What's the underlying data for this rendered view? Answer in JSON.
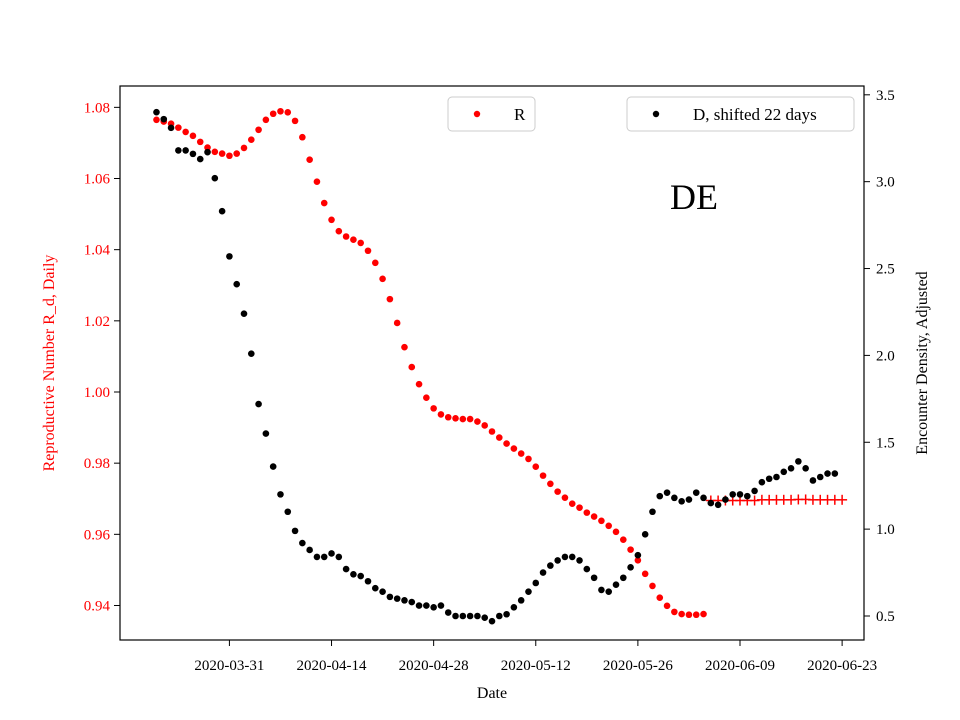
{
  "chart_data": {
    "type": "scatter",
    "annotation": "DE",
    "xlabel": "Date",
    "x_tick_labels": [
      "2020-03-31",
      "2020-04-14",
      "2020-04-28",
      "2020-05-12",
      "2020-05-26",
      "2020-06-09",
      "2020-06-23"
    ],
    "x_ticks": [
      "2020-03-31",
      "2020-04-14",
      "2020-04-28",
      "2020-05-12",
      "2020-05-26",
      "2020-06-09",
      "2020-06-23"
    ],
    "xlim": [
      "2020-03-16",
      "2020-06-26"
    ],
    "y_left": {
      "label": "Reproductive Number R_d, Daily",
      "color": "#ff0000",
      "ylim": [
        0.9303,
        1.086
      ],
      "ticks": [
        0.94,
        0.96,
        0.98,
        1.0,
        1.02,
        1.04,
        1.06,
        1.08
      ],
      "tick_labels": [
        "0.94",
        "0.96",
        "0.98",
        "1.00",
        "1.02",
        "1.04",
        "1.06",
        "1.08"
      ]
    },
    "y_right": {
      "label": "Encounter Density, Adjusted",
      "color": "#000000",
      "ylim": [
        0.3618,
        3.5507
      ],
      "ticks": [
        0.5,
        1.0,
        1.5,
        2.0,
        2.5,
        3.0,
        3.5
      ],
      "tick_labels": [
        "0.5",
        "1.0",
        "1.5",
        "2.0",
        "2.5",
        "3.0",
        "3.5"
      ]
    },
    "legend": [
      {
        "label": "R",
        "color": "#ff0000",
        "position": "top-center"
      },
      {
        "label": "D, shifted 22 days",
        "color": "#000000",
        "position": "top-right"
      }
    ],
    "series": [
      {
        "name": "R",
        "axis": "left",
        "marker": "dot",
        "color": "#ff0000",
        "points": [
          [
            "2020-03-21",
            1.0765
          ],
          [
            "2020-03-22",
            1.076
          ],
          [
            "2020-03-23",
            1.0754
          ],
          [
            "2020-03-24",
            1.0743
          ],
          [
            "2020-03-25",
            1.0731
          ],
          [
            "2020-03-26",
            1.072
          ],
          [
            "2020-03-27",
            1.0703
          ],
          [
            "2020-03-28",
            1.0687
          ],
          [
            "2020-03-29",
            1.0675
          ],
          [
            "2020-03-30",
            1.067
          ],
          [
            "2020-03-31",
            1.0664
          ],
          [
            "2020-04-01",
            1.067
          ],
          [
            "2020-04-02",
            1.0686
          ],
          [
            "2020-04-03",
            1.0709
          ],
          [
            "2020-04-04",
            1.0737
          ],
          [
            "2020-04-05",
            1.0765
          ],
          [
            "2020-04-06",
            1.0782
          ],
          [
            "2020-04-07",
            1.0789
          ],
          [
            "2020-04-08",
            1.0786
          ],
          [
            "2020-04-09",
            1.0762
          ],
          [
            "2020-04-10",
            1.0716
          ],
          [
            "2020-04-11",
            1.0653
          ],
          [
            "2020-04-12",
            1.0591
          ],
          [
            "2020-04-13",
            1.0531
          ],
          [
            "2020-04-14",
            1.0484
          ],
          [
            "2020-04-15",
            1.0452
          ],
          [
            "2020-04-16",
            1.0437
          ],
          [
            "2020-04-17",
            1.0428
          ],
          [
            "2020-04-18",
            1.0419
          ],
          [
            "2020-04-19",
            1.0397
          ],
          [
            "2020-04-20",
            1.0363
          ],
          [
            "2020-04-21",
            1.0318
          ],
          [
            "2020-04-22",
            1.0261
          ],
          [
            "2020-04-23",
            1.0194
          ],
          [
            "2020-04-24",
            1.0126
          ],
          [
            "2020-04-25",
            1.007
          ],
          [
            "2020-04-26",
            1.0022
          ],
          [
            "2020-04-27",
            0.9984
          ],
          [
            "2020-04-28",
            0.9954
          ],
          [
            "2020-04-29",
            0.9937
          ],
          [
            "2020-04-30",
            0.9929
          ],
          [
            "2020-05-01",
            0.9926
          ],
          [
            "2020-05-02",
            0.9924
          ],
          [
            "2020-05-03",
            0.9924
          ],
          [
            "2020-05-04",
            0.9917
          ],
          [
            "2020-05-05",
            0.9906
          ],
          [
            "2020-05-06",
            0.9889
          ],
          [
            "2020-05-07",
            0.9872
          ],
          [
            "2020-05-08",
            0.9855
          ],
          [
            "2020-05-09",
            0.9841
          ],
          [
            "2020-05-10",
            0.9827
          ],
          [
            "2020-05-11",
            0.9812
          ],
          [
            "2020-05-12",
            0.979
          ],
          [
            "2020-05-13",
            0.9765
          ],
          [
            "2020-05-14",
            0.9742
          ],
          [
            "2020-05-15",
            0.972
          ],
          [
            "2020-05-16",
            0.9703
          ],
          [
            "2020-05-17",
            0.9686
          ],
          [
            "2020-05-18",
            0.9675
          ],
          [
            "2020-05-19",
            0.9661
          ],
          [
            "2020-05-20",
            0.965
          ],
          [
            "2020-05-21",
            0.9638
          ],
          [
            "2020-05-22",
            0.9624
          ],
          [
            "2020-05-23",
            0.9607
          ],
          [
            "2020-05-24",
            0.9585
          ],
          [
            "2020-05-25",
            0.9557
          ],
          [
            "2020-05-26",
            0.9527
          ],
          [
            "2020-05-27",
            0.9489
          ],
          [
            "2020-05-28",
            0.9455
          ],
          [
            "2020-05-29",
            0.9422
          ],
          [
            "2020-05-30",
            0.9399
          ],
          [
            "2020-05-31",
            0.9382
          ],
          [
            "2020-06-01",
            0.9376
          ],
          [
            "2020-06-02",
            0.9374
          ],
          [
            "2020-06-03",
            0.9374
          ],
          [
            "2020-06-04",
            0.9376
          ]
        ]
      },
      {
        "name": "",
        "axis": "left",
        "marker": "plus",
        "color": "#ff0000",
        "points": [
          [
            "2020-06-05",
            0.9695
          ],
          [
            "2020-06-06",
            0.9695
          ],
          [
            "2020-06-07",
            0.9695
          ],
          [
            "2020-06-08",
            0.9695
          ],
          [
            "2020-06-09",
            0.9695
          ],
          [
            "2020-06-10",
            0.9695
          ],
          [
            "2020-06-11",
            0.9695
          ],
          [
            "2020-06-12",
            0.9697
          ],
          [
            "2020-06-13",
            0.9697
          ],
          [
            "2020-06-14",
            0.9697
          ],
          [
            "2020-06-15",
            0.9697
          ],
          [
            "2020-06-16",
            0.9697
          ],
          [
            "2020-06-17",
            0.9698
          ],
          [
            "2020-06-18",
            0.9698
          ],
          [
            "2020-06-19",
            0.9697
          ],
          [
            "2020-06-20",
            0.9697
          ],
          [
            "2020-06-21",
            0.9697
          ],
          [
            "2020-06-22",
            0.9697
          ],
          [
            "2020-06-23",
            0.9697
          ]
        ]
      },
      {
        "name": "D, shifted 22 days",
        "axis": "right",
        "marker": "dot",
        "color": "#000000",
        "points": [
          [
            "2020-03-21",
            3.4
          ],
          [
            "2020-03-22",
            3.36
          ],
          [
            "2020-03-23",
            3.31
          ],
          [
            "2020-03-24",
            3.18
          ],
          [
            "2020-03-25",
            3.18
          ],
          [
            "2020-03-26",
            3.16
          ],
          [
            "2020-03-27",
            3.13
          ],
          [
            "2020-03-28",
            3.17
          ],
          [
            "2020-03-29",
            3.02
          ],
          [
            "2020-03-30",
            2.83
          ],
          [
            "2020-03-31",
            2.57
          ],
          [
            "2020-04-01",
            2.41
          ],
          [
            "2020-04-02",
            2.24
          ],
          [
            "2020-04-03",
            2.01
          ],
          [
            "2020-04-04",
            1.72
          ],
          [
            "2020-04-05",
            1.55
          ],
          [
            "2020-04-06",
            1.36
          ],
          [
            "2020-04-07",
            1.2
          ],
          [
            "2020-04-08",
            1.1
          ],
          [
            "2020-04-09",
            0.99
          ],
          [
            "2020-04-10",
            0.92
          ],
          [
            "2020-04-11",
            0.88
          ],
          [
            "2020-04-12",
            0.84
          ],
          [
            "2020-04-13",
            0.84
          ],
          [
            "2020-04-14",
            0.86
          ],
          [
            "2020-04-15",
            0.84
          ],
          [
            "2020-04-16",
            0.77
          ],
          [
            "2020-04-17",
            0.74
          ],
          [
            "2020-04-18",
            0.73
          ],
          [
            "2020-04-19",
            0.7
          ],
          [
            "2020-04-20",
            0.66
          ],
          [
            "2020-04-21",
            0.64
          ],
          [
            "2020-04-22",
            0.61
          ],
          [
            "2020-04-23",
            0.6
          ],
          [
            "2020-04-24",
            0.59
          ],
          [
            "2020-04-25",
            0.58
          ],
          [
            "2020-04-26",
            0.56
          ],
          [
            "2020-04-27",
            0.56
          ],
          [
            "2020-04-28",
            0.55
          ],
          [
            "2020-04-29",
            0.56
          ],
          [
            "2020-04-30",
            0.52
          ],
          [
            "2020-05-01",
            0.5
          ],
          [
            "2020-05-02",
            0.5
          ],
          [
            "2020-05-03",
            0.5
          ],
          [
            "2020-05-04",
            0.5
          ],
          [
            "2020-05-05",
            0.49
          ],
          [
            "2020-05-06",
            0.47
          ],
          [
            "2020-05-07",
            0.5
          ],
          [
            "2020-05-08",
            0.51
          ],
          [
            "2020-05-09",
            0.55
          ],
          [
            "2020-05-10",
            0.59
          ],
          [
            "2020-05-11",
            0.64
          ],
          [
            "2020-05-12",
            0.69
          ],
          [
            "2020-05-13",
            0.75
          ],
          [
            "2020-05-14",
            0.79
          ],
          [
            "2020-05-15",
            0.82
          ],
          [
            "2020-05-16",
            0.84
          ],
          [
            "2020-05-17",
            0.84
          ],
          [
            "2020-05-18",
            0.82
          ],
          [
            "2020-05-19",
            0.77
          ],
          [
            "2020-05-20",
            0.72
          ],
          [
            "2020-05-21",
            0.65
          ],
          [
            "2020-05-22",
            0.64
          ],
          [
            "2020-05-23",
            0.68
          ],
          [
            "2020-05-24",
            0.72
          ],
          [
            "2020-05-25",
            0.78
          ],
          [
            "2020-05-26",
            0.85
          ],
          [
            "2020-05-27",
            0.97
          ],
          [
            "2020-05-28",
            1.1
          ],
          [
            "2020-05-29",
            1.19
          ],
          [
            "2020-05-30",
            1.21
          ],
          [
            "2020-05-31",
            1.18
          ],
          [
            "2020-06-01",
            1.16
          ],
          [
            "2020-06-02",
            1.17
          ],
          [
            "2020-06-03",
            1.21
          ],
          [
            "2020-06-04",
            1.18
          ],
          [
            "2020-06-05",
            1.15
          ],
          [
            "2020-06-06",
            1.14
          ],
          [
            "2020-06-07",
            1.17
          ],
          [
            "2020-06-08",
            1.2
          ],
          [
            "2020-06-09",
            1.2
          ],
          [
            "2020-06-10",
            1.19
          ],
          [
            "2020-06-11",
            1.22
          ],
          [
            "2020-06-12",
            1.27
          ],
          [
            "2020-06-13",
            1.29
          ],
          [
            "2020-06-14",
            1.3
          ],
          [
            "2020-06-15",
            1.33
          ],
          [
            "2020-06-16",
            1.35
          ],
          [
            "2020-06-17",
            1.39
          ],
          [
            "2020-06-18",
            1.35
          ],
          [
            "2020-06-19",
            1.28
          ],
          [
            "2020-06-20",
            1.3
          ],
          [
            "2020-06-21",
            1.32
          ],
          [
            "2020-06-22",
            1.32
          ]
        ]
      }
    ]
  }
}
